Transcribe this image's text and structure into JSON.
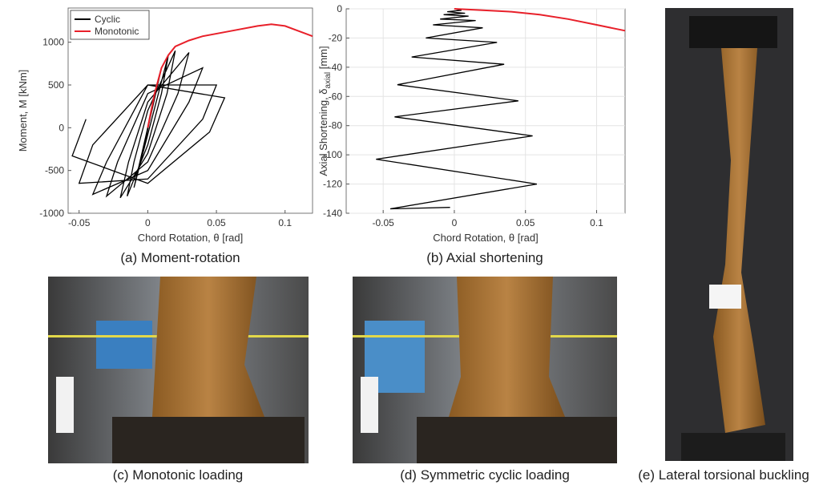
{
  "chart_data": [
    {
      "type": "line",
      "xlabel": "Chord Rotation, θ [rad]",
      "ylabel": "Moment, M [kNm]",
      "xlim": [
        -0.058,
        0.12
      ],
      "xticks": [
        -0.05,
        0,
        0.05,
        0.1
      ],
      "ylim": [
        -1000,
        1400
      ],
      "yticks": [
        -1000,
        -500,
        0,
        500,
        1000
      ],
      "legend": "upper left",
      "grid": false,
      "series": [
        {
          "name": "Cyclic",
          "color": "#000000",
          "x": [
            0,
            0.005,
            -0.005,
            0.0075,
            -0.0075,
            0.01,
            -0.01,
            0.015,
            0.01,
            0,
            -0.015,
            -0.01,
            0,
            0.02,
            0.014,
            0,
            -0.02,
            -0.014,
            0,
            0.03,
            0.022,
            0,
            -0.03,
            -0.022,
            0,
            0.04,
            0.03,
            0,
            -0.04,
            -0.03,
            0,
            0.05,
            0.04,
            0,
            -0.05,
            -0.04,
            0,
            0.056,
            0.045,
            0,
            -0.055,
            -0.045
          ],
          "values": [
            0,
            400,
            -400,
            550,
            -550,
            700,
            -700,
            850,
            400,
            -200,
            -800,
            -400,
            200,
            900,
            400,
            -300,
            -820,
            -400,
            300,
            880,
            400,
            -400,
            -800,
            -400,
            400,
            700,
            300,
            -500,
            -780,
            -400,
            500,
            500,
            100,
            -600,
            -650,
            -200,
            500,
            350,
            -50,
            -650,
            -330,
            100
          ]
        },
        {
          "name": "Monotonic",
          "color": "#e8202a",
          "x": [
            0,
            0.005,
            0.01,
            0.015,
            0.02,
            0.03,
            0.04,
            0.06,
            0.08,
            0.09,
            0.1,
            0.11,
            0.12
          ],
          "values": [
            0,
            400,
            700,
            850,
            950,
            1020,
            1070,
            1130,
            1190,
            1210,
            1190,
            1130,
            1070
          ]
        }
      ]
    },
    {
      "type": "line",
      "xlabel": "Chord Rotation, θ [rad]",
      "ylabel": "Axial Shortening, δ",
      "ylabel_sub": "axial",
      "ylabel_unit": " [mm]",
      "xlim": [
        -0.076,
        0.12
      ],
      "xticks": [
        -0.05,
        0,
        0.05,
        0.1
      ],
      "ylim": [
        -140,
        0
      ],
      "yticks": [
        -140,
        -120,
        -100,
        -80,
        -60,
        -40,
        -20,
        0
      ],
      "grid": true,
      "series": [
        {
          "name": "Cyclic",
          "color": "#000000",
          "x": [
            0,
            0.005,
            -0.005,
            0.0075,
            -0.0075,
            0.01,
            -0.01,
            0.015,
            -0.015,
            0.02,
            -0.02,
            0.03,
            -0.03,
            0.035,
            -0.04,
            0.045,
            -0.042,
            0.055,
            -0.055,
            0.058,
            -0.045,
            -0.003
          ],
          "values": [
            0,
            -1,
            -2,
            -3,
            -4,
            -5,
            -7,
            -8,
            -11,
            -13,
            -20,
            -23,
            -33,
            -38,
            -52,
            -63,
            -74,
            -87,
            -103,
            -120,
            -137,
            -136
          ]
        },
        {
          "name": "Monotonic",
          "color": "#e8202a",
          "x": [
            0,
            0.02,
            0.04,
            0.06,
            0.08,
            0.1,
            0.12
          ],
          "values": [
            0,
            -1,
            -2,
            -4,
            -7,
            -11,
            -15
          ]
        }
      ]
    }
  ],
  "captions": [
    "(a) Moment-rotation",
    "(b) Axial shortening",
    "(c) Monotonic loading",
    "(d) Symmetric cyclic loading",
    "(e) Lateral torsional buckling"
  ]
}
